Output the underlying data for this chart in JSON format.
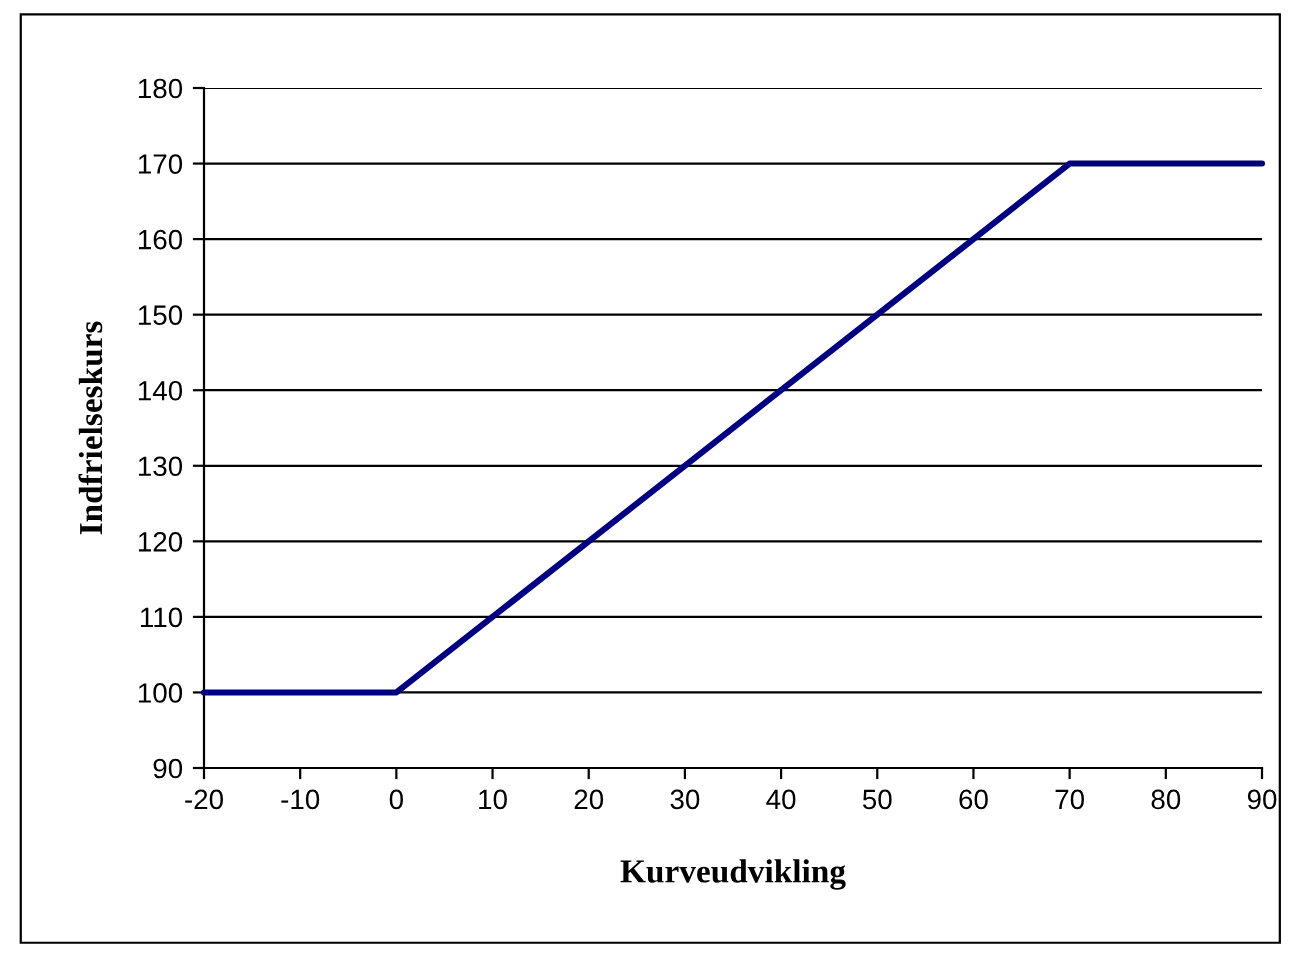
{
  "chart_data": {
    "type": "line",
    "xlabel": "Kurveudvikling",
    "ylabel": "Indfrielseskurs",
    "x": [
      -20,
      0,
      70,
      90
    ],
    "series": [
      {
        "color": "#000080",
        "values": [
          100,
          100,
          170,
          170
        ]
      }
    ],
    "xlim": [
      -20,
      90
    ],
    "xticks": [
      -20,
      -10,
      0,
      10,
      20,
      30,
      40,
      50,
      60,
      70,
      80,
      90
    ],
    "ylim": [
      90,
      180
    ],
    "yticks": [
      90,
      100,
      110,
      120,
      130,
      140,
      150,
      160,
      170,
      180
    ],
    "grid": "y",
    "marker": "none",
    "line_style": "solid",
    "legend": false
  }
}
